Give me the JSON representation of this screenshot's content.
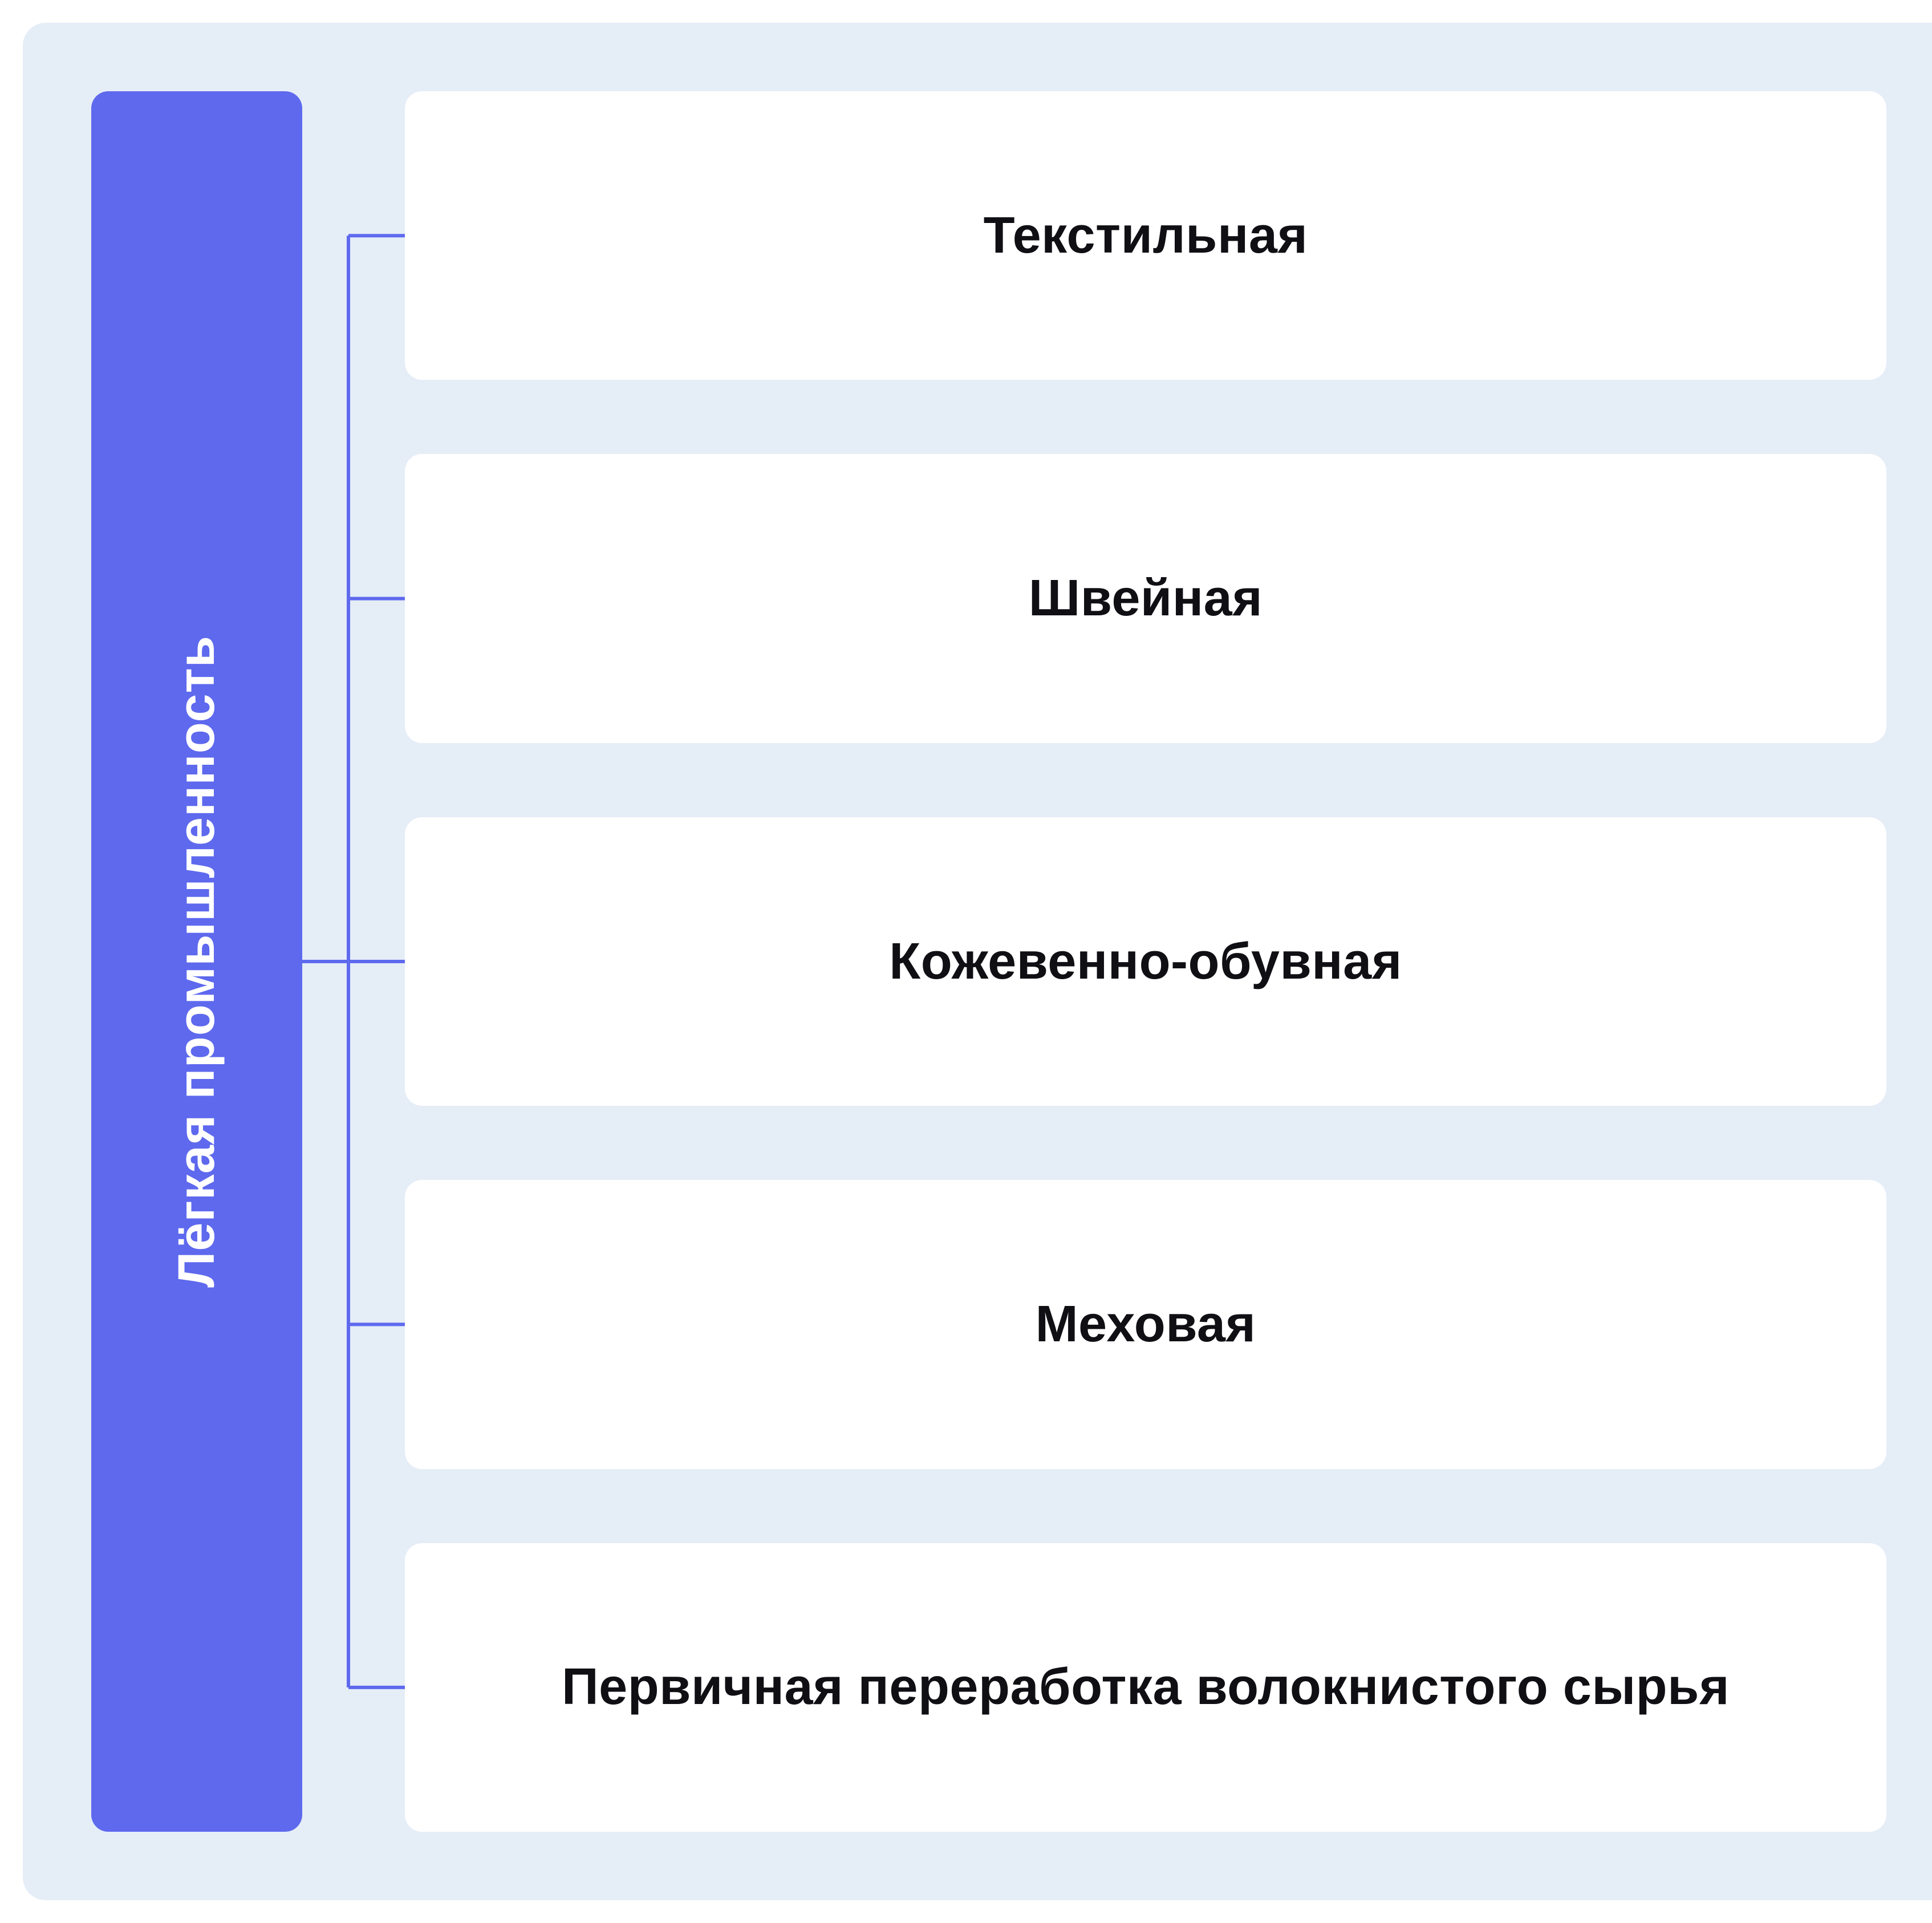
{
  "diagram": {
    "type": "tree",
    "root": {
      "label": "Лёгкая промышленность",
      "background_color": "#5e69ee",
      "text_color": "#ffffff",
      "font_size": 90,
      "font_weight": 700,
      "border_radius": 30
    },
    "children": [
      {
        "label": "Текстильная"
      },
      {
        "label": "Швейная"
      },
      {
        "label": "Кожевенно-обувная"
      },
      {
        "label": "Меховая"
      },
      {
        "label": "Первичная переработка волокнистого сырья"
      }
    ],
    "child_style": {
      "background_color": "#ffffff",
      "text_color": "#0f0f14",
      "font_size": 90,
      "font_weight": 600,
      "border_radius": 30
    },
    "layout": {
      "container_background": "#e5edf7",
      "container_border_radius": 40,
      "connector_color": "#5e69ee",
      "connector_width": 6,
      "child_gap": 130,
      "connector_region_width": 180
    }
  }
}
